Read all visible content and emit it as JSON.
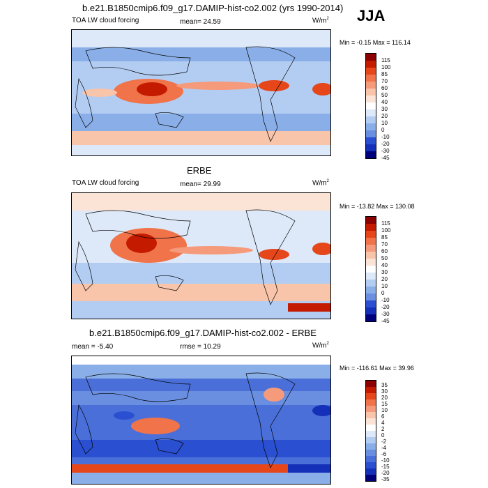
{
  "season": "JJA",
  "panels": [
    {
      "title": "b.e21.B1850cmip6.f09_g17.DAMIP-hist-co2.002 (yrs 1990-2014)",
      "left_label": "TOA LW cloud forcing",
      "center_label": "mean=  24.59",
      "units": "W/m",
      "units_sup": "2",
      "minmax": "Min =  -0.15 Max = 116.14",
      "cbar_levels": [
        "115",
        "100",
        "85",
        "70",
        "60",
        "50",
        "40",
        "30",
        "20",
        "10",
        "0",
        "-10",
        "-20",
        "-30",
        "-45"
      ]
    },
    {
      "title": "ERBE",
      "left_label": "TOA LW cloud forcing",
      "center_label": "mean=  29.99",
      "units": "W/m",
      "units_sup": "2",
      "minmax": "Min = -13.82 Max = 130.08",
      "cbar_levels": [
        "115",
        "100",
        "85",
        "70",
        "60",
        "50",
        "40",
        "30",
        "20",
        "10",
        "0",
        "-10",
        "-20",
        "-30",
        "-45"
      ]
    },
    {
      "title": "b.e21.B1850cmip6.f09_g17.DAMIP-hist-co2.002 - ERBE",
      "left_label": "mean =  -5.40",
      "center_label": "rmse =  10.29",
      "units": "W/m",
      "units_sup": "2",
      "minmax": "Min = -116.61 Max =  39.96",
      "cbar_levels": [
        "35",
        "30",
        "20",
        "15",
        "10",
        "6",
        "4",
        "2",
        "0",
        "-2",
        "-4",
        "-6",
        "-10",
        "-15",
        "-20",
        "-35"
      ]
    }
  ],
  "colors": {
    "scale": [
      "#8b0000",
      "#c41a00",
      "#e5461a",
      "#f0734a",
      "#f59a7a",
      "#f8c4aa",
      "#fbe4d6",
      "#dde8f8",
      "#b3cdf2",
      "#8aafe8",
      "#6a8fe0",
      "#4a6fd8",
      "#2a4fd0",
      "#1530b8",
      "#00007a"
    ]
  }
}
